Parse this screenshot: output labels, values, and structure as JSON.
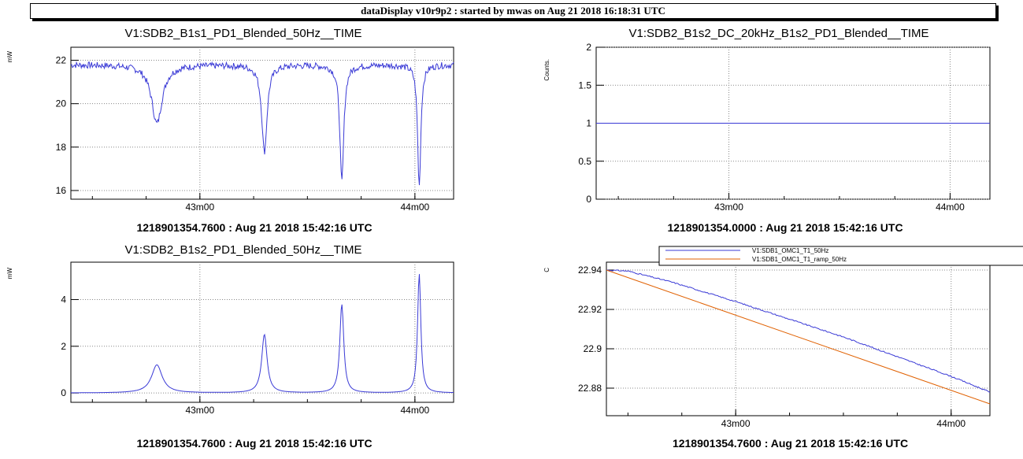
{
  "window_title": "dataDisplay v10r9p2 : started by mwas on Aug 21 2018 16:18:31 UTC",
  "colors": {
    "series_blue": "#3a3ad6",
    "series_orange": "#e06000",
    "grid": "#888888"
  },
  "chart_data": [
    {
      "type": "line",
      "title": "V1:SDB2_B1s1_PD1_Blended_50Hz__TIME",
      "ylabel": "mW",
      "footer": "1218901354.7600 : Aug 21 2018 15:42:16 UTC",
      "xlim": [
        42.4,
        44.18
      ],
      "ylim": [
        15.6,
        22.6
      ],
      "xticks": [
        {
          "v": 43.0,
          "label": "43m00"
        },
        {
          "v": 44.0,
          "label": "44m00"
        }
      ],
      "yticks": [
        {
          "v": 16,
          "label": "16"
        },
        {
          "v": 18,
          "label": "18"
        },
        {
          "v": 20,
          "label": "20"
        },
        {
          "v": 22,
          "label": "22"
        }
      ],
      "baseline": 21.8,
      "dips": [
        {
          "center": 42.8,
          "depth": 2.7,
          "width": 0.03
        },
        {
          "center": 43.3,
          "depth": 4.0,
          "width": 0.015
        },
        {
          "center": 43.66,
          "depth": 5.4,
          "width": 0.011
        },
        {
          "center": 44.02,
          "depth": 5.6,
          "width": 0.009
        }
      ],
      "series": [
        {
          "color": "#3a3ad6"
        }
      ]
    },
    {
      "type": "line",
      "title": "V1:SDB2_B1s2_DC_20kHz_B1s2_PD1_Blended__TIME",
      "ylabel": "Counts.",
      "footer": "1218901354.0000 : Aug 21 2018 15:42:16 UTC",
      "xlim": [
        42.4,
        44.18
      ],
      "ylim": [
        0,
        2
      ],
      "xticks": [
        {
          "v": 43.0,
          "label": "43m00"
        },
        {
          "v": 44.0,
          "label": "44m00"
        }
      ],
      "yticks": [
        {
          "v": 0,
          "label": "0"
        },
        {
          "v": 0.5,
          "label": "0.5"
        },
        {
          "v": 1,
          "label": "1"
        },
        {
          "v": 1.5,
          "label": "1.5"
        },
        {
          "v": 2,
          "label": "2"
        }
      ],
      "series": [
        {
          "color": "#3a3ad6",
          "x": [
            42.4,
            44.18
          ],
          "y": [
            1,
            1
          ]
        }
      ]
    },
    {
      "type": "line",
      "title": "V1:SDB2_B1s2_PD1_Blended_50Hz__TIME",
      "ylabel": "mW",
      "footer": "1218901354.7600 : Aug 21 2018 15:42:16 UTC",
      "xlim": [
        42.4,
        44.18
      ],
      "ylim": [
        -0.4,
        5.6
      ],
      "xticks": [
        {
          "v": 43.0,
          "label": "43m00"
        },
        {
          "v": 44.0,
          "label": "44m00"
        }
      ],
      "yticks": [
        {
          "v": 0,
          "label": "0"
        },
        {
          "v": 2,
          "label": "2"
        },
        {
          "v": 4,
          "label": "4"
        }
      ],
      "baseline": 0,
      "peaks": [
        {
          "center": 42.8,
          "height": 1.2,
          "width": 0.03
        },
        {
          "center": 43.3,
          "height": 2.5,
          "width": 0.015
        },
        {
          "center": 43.66,
          "height": 3.8,
          "width": 0.011
        },
        {
          "center": 44.02,
          "height": 5.1,
          "width": 0.009
        }
      ],
      "series": [
        {
          "color": "#3a3ad6"
        }
      ]
    },
    {
      "type": "line",
      "title": "",
      "ylabel": "C",
      "footer": "1218901354.7600 : Aug 21 2018 15:42:16 UTC",
      "xlim": [
        42.4,
        44.18
      ],
      "ylim": [
        22.866,
        22.944
      ],
      "xticks": [
        {
          "v": 43.0,
          "label": "43m00"
        },
        {
          "v": 44.0,
          "label": "44m00"
        }
      ],
      "yticks": [
        {
          "v": 22.88,
          "label": "22.88"
        },
        {
          "v": 22.9,
          "label": "22.9"
        },
        {
          "v": 22.92,
          "label": "22.92"
        },
        {
          "v": 22.94,
          "label": "22.94"
        }
      ],
      "legend": {
        "position": "top",
        "entries": [
          {
            "name": "V1:SDB1_OMC1_T1_50Hz",
            "color": "#3a3ad6"
          },
          {
            "name": "V1:SDB1_OMC1_T1_ramp_50Hz",
            "color": "#e06000"
          }
        ]
      },
      "series": [
        {
          "name": "V1:SDB1_OMC1_T1_50Hz",
          "color": "#3a3ad6",
          "x": [
            42.4,
            42.5,
            42.7,
            43.0,
            43.5,
            44.0,
            44.18
          ],
          "y": [
            22.94,
            22.9395,
            22.934,
            22.924,
            22.906,
            22.886,
            22.878
          ]
        },
        {
          "name": "V1:SDB1_OMC1_T1_ramp_50Hz",
          "color": "#e06000",
          "x": [
            42.4,
            44.18
          ],
          "y": [
            22.94,
            22.872
          ]
        }
      ]
    }
  ]
}
